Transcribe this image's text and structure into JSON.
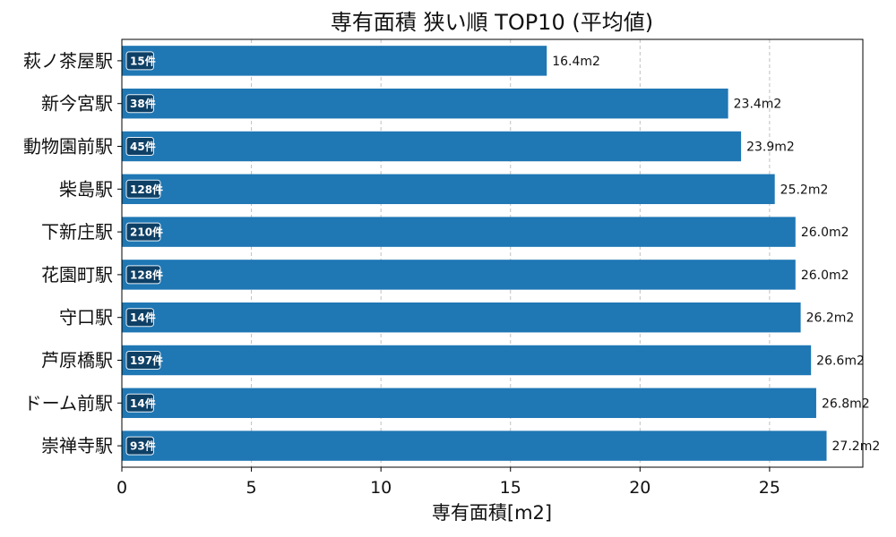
{
  "chart_data": {
    "type": "bar",
    "orientation": "horizontal",
    "title": "専有面積 狭い順 TOP10 (平均値)",
    "xlabel": "専有面積[m2]",
    "ylabel": "",
    "xlim": [
      0,
      28.6
    ],
    "xticks": [
      0,
      5,
      10,
      15,
      20,
      25
    ],
    "grid": "x-dashed",
    "legend": "none",
    "bar_color": "#1f77b4",
    "badge_color": "#0d3b5e",
    "categories": [
      "萩ノ茶屋駅",
      "新今宮駅",
      "動物園前駅",
      "柴島駅",
      "下新庄駅",
      "花園町駅",
      "守口駅",
      "芦原橋駅",
      "ドーム前駅",
      "崇禅寺駅"
    ],
    "values": [
      16.4,
      23.4,
      23.9,
      25.2,
      26.0,
      26.0,
      26.2,
      26.6,
      26.8,
      27.2
    ],
    "value_labels": [
      "16.4m2",
      "23.4m2",
      "23.9m2",
      "25.2m2",
      "26.0m2",
      "26.0m2",
      "26.2m2",
      "26.6m2",
      "26.8m2",
      "27.2m2"
    ],
    "counts": [
      "15件",
      "38件",
      "45件",
      "128件",
      "210件",
      "128件",
      "14件",
      "197件",
      "14件",
      "93件"
    ]
  }
}
